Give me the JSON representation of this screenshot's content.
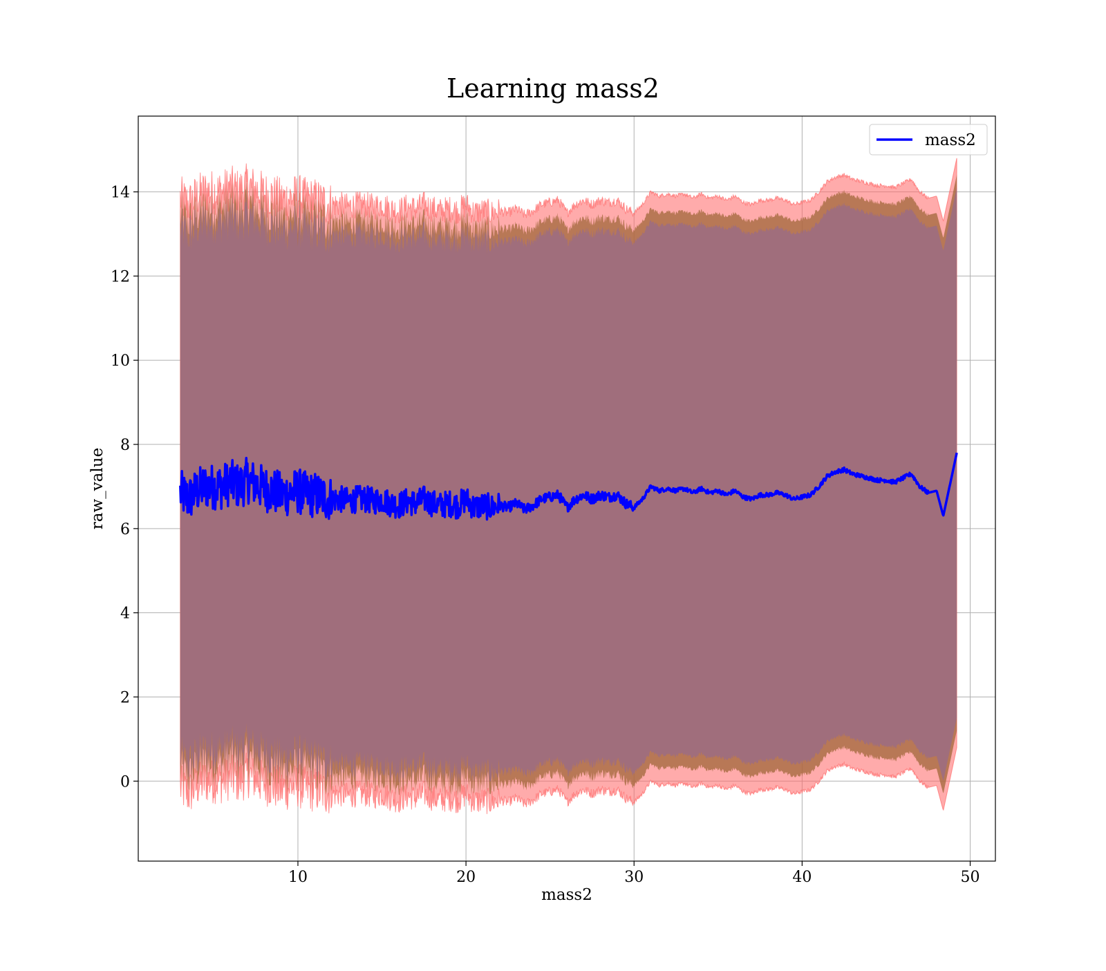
{
  "chart_data": {
    "type": "line",
    "title": "Learning mass2",
    "xlabel": "mass2",
    "ylabel": "raw_value",
    "xlim": [
      0.5,
      51.5
    ],
    "ylim": [
      -1.9,
      15.8
    ],
    "xticks": [
      10,
      20,
      30,
      40,
      50
    ],
    "yticks": [
      0,
      2,
      4,
      6,
      8,
      10,
      12,
      14
    ],
    "grid": true,
    "legend": {
      "position": "top-right",
      "entries": [
        "mass2"
      ]
    },
    "colors": {
      "line": "#0000ff",
      "outer_band": "#ff6666",
      "middle_band": "#a0673a",
      "inner_band": "#a06e7c",
      "grid": "#b0b0b0"
    },
    "series": [
      {
        "name": "mass2",
        "x": [
          3.0,
          3.5,
          4.0,
          4.5,
          5.0,
          5.5,
          6.0,
          6.5,
          7.0,
          7.5,
          8.0,
          8.5,
          9.0,
          9.5,
          10.0,
          10.5,
          11.0,
          11.5,
          12.0,
          12.5,
          13.0,
          13.5,
          14.0,
          14.5,
          15.0,
          15.5,
          16.0,
          16.5,
          17.0,
          17.5,
          18.0,
          18.5,
          19.0,
          19.5,
          20.0,
          20.5,
          21.0,
          21.5,
          22.0,
          22.5,
          23.0,
          23.5,
          24.0,
          24.5,
          25.0,
          25.5,
          26.0,
          26.5,
          27.0,
          27.5,
          28.0,
          28.5,
          29.0,
          29.5,
          30.0,
          30.5,
          31.0,
          31.5,
          32.0,
          32.5,
          33.0,
          33.5,
          34.0,
          34.5,
          35.0,
          35.5,
          36.0,
          36.5,
          37.0,
          37.5,
          38.0,
          38.5,
          39.0,
          39.5,
          40.0,
          40.5,
          41.0,
          41.5,
          42.0,
          42.5,
          43.0,
          43.5,
          44.0,
          44.5,
          45.0,
          45.5,
          46.0,
          46.5,
          47.0,
          47.5,
          48.0,
          48.4,
          49.2
        ],
        "y": [
          6.85,
          6.7,
          6.9,
          7.0,
          7.0,
          7.0,
          7.1,
          7.0,
          7.15,
          7.05,
          6.95,
          6.9,
          6.8,
          6.85,
          6.9,
          6.8,
          6.8,
          6.75,
          6.7,
          6.7,
          6.65,
          6.7,
          6.7,
          6.65,
          6.7,
          6.6,
          6.55,
          6.65,
          6.6,
          6.7,
          6.6,
          6.55,
          6.6,
          6.55,
          6.7,
          6.5,
          6.55,
          6.5,
          6.55,
          6.5,
          6.6,
          6.45,
          6.55,
          6.7,
          6.75,
          6.8,
          6.5,
          6.7,
          6.8,
          6.7,
          6.8,
          6.75,
          6.8,
          6.6,
          6.5,
          6.7,
          7.0,
          6.9,
          6.95,
          6.9,
          6.95,
          6.85,
          6.95,
          6.85,
          6.9,
          6.8,
          6.9,
          6.75,
          6.7,
          6.8,
          6.8,
          6.85,
          6.8,
          6.7,
          6.75,
          6.8,
          7.0,
          7.25,
          7.35,
          7.4,
          7.3,
          7.25,
          7.2,
          7.15,
          7.15,
          7.1,
          7.2,
          7.3,
          7.0,
          6.85,
          6.9,
          6.3,
          7.8
        ]
      }
    ]
  }
}
